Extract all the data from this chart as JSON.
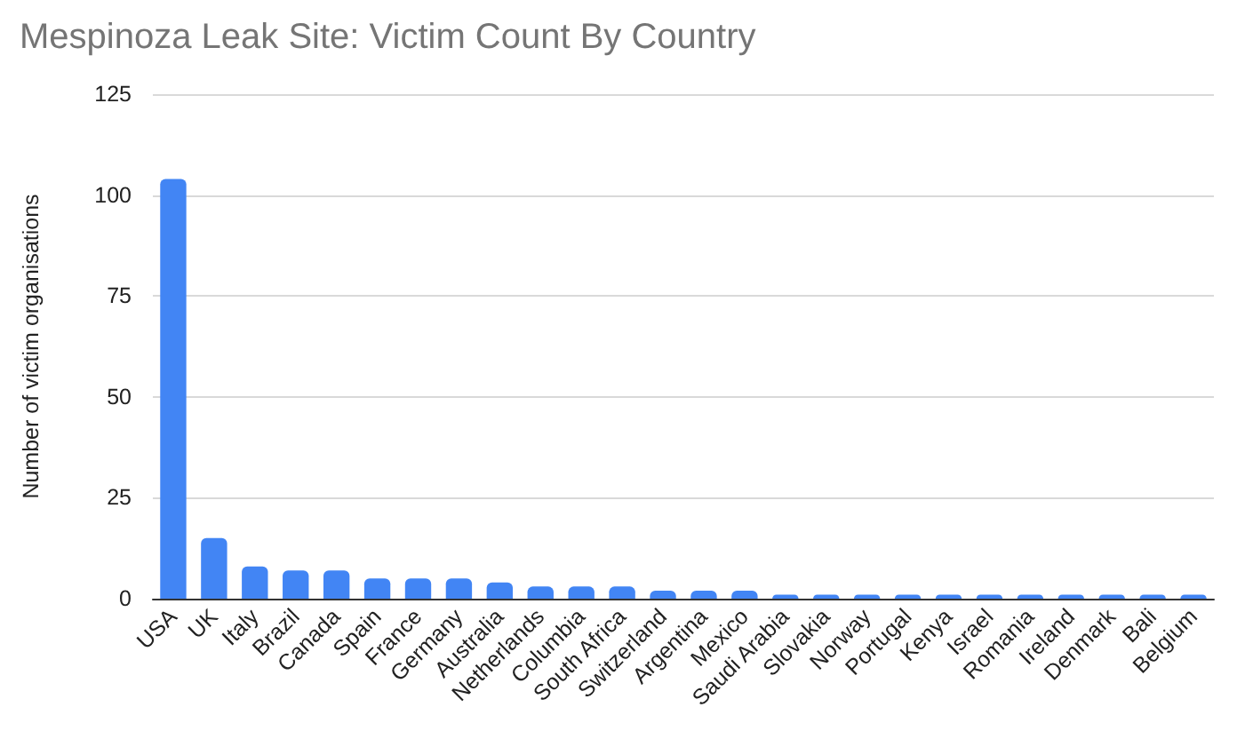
{
  "chart_data": {
    "type": "bar",
    "title": "Mespinoza Leak Site: Victim Count By Country",
    "ylabel": "Number of victim organisations",
    "categories": [
      "USA",
      "UK",
      "Italy",
      "Brazil",
      "Canada",
      "Spain",
      "France",
      "Germany",
      "Australia",
      "Netherlands",
      "Columbia",
      "South Africa",
      "Switzerland",
      "Argentina",
      "Mexico",
      "Saudi Arabia",
      "Slovakia",
      "Norway",
      "Portugal",
      "Kenya",
      "Israel",
      "Romania",
      "Ireland",
      "Denmark",
      "Bali",
      "Belgium"
    ],
    "values": [
      104,
      15,
      8,
      7,
      7,
      5,
      5,
      5,
      4,
      3,
      3,
      3,
      2,
      2,
      2,
      1,
      1,
      1,
      1,
      1,
      1,
      1,
      1,
      1,
      1,
      1
    ],
    "color": "#4285f4",
    "ylim": [
      0,
      125
    ],
    "yticks": [
      0,
      25,
      50,
      75,
      100,
      125
    ],
    "grid": true
  }
}
